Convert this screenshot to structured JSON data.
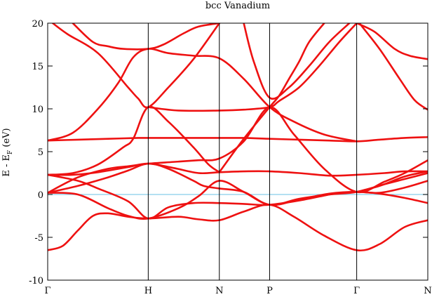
{
  "chart_data": {
    "type": "line",
    "title": "bcc Vanadium",
    "ylabel": {
      "main": "E - E",
      "subscript": "F",
      "suffix": " (eV)"
    },
    "xlabel": "",
    "ylim": [
      -10,
      20
    ],
    "yticks": [
      -10,
      -5,
      0,
      5,
      10,
      15,
      20
    ],
    "grid": false,
    "legend": "none",
    "colors": {
      "bands": "#ee1111",
      "fermi_level": "#87ceeb",
      "axes": "#000000"
    },
    "high_symmetry_points": [
      {
        "label": "Γ",
        "k": 0.0
      },
      {
        "label": "H",
        "k": 1.0
      },
      {
        "label": "N",
        "k": 1.7071
      },
      {
        "label": "P",
        "k": 2.2071
      },
      {
        "label": "Γ",
        "k": 3.0731
      },
      {
        "label": "N",
        "k": 3.7802
      }
    ],
    "fermi_level": 0,
    "series": [
      {
        "values": [
          [
            0.0,
            -6.5
          ],
          [
            0.15,
            -6.0
          ],
          [
            0.3,
            -4.2
          ],
          [
            0.45,
            -2.5
          ],
          [
            0.6,
            -2.2
          ],
          [
            0.8,
            -2.6
          ],
          [
            1.0,
            -2.8
          ],
          [
            1.3,
            -2.6
          ],
          [
            1.5,
            -2.9
          ],
          [
            1.7071,
            -3.0
          ],
          [
            1.95,
            -2.0
          ],
          [
            2.2071,
            -1.2
          ],
          [
            2.45,
            -2.6
          ],
          [
            2.75,
            -4.8
          ],
          [
            3.0731,
            -6.5
          ],
          [
            3.3,
            -5.8
          ],
          [
            3.55,
            -3.8
          ],
          [
            3.7802,
            -3.0
          ]
        ]
      },
      {
        "values": [
          [
            0.0,
            0.2
          ],
          [
            0.3,
            0.0
          ],
          [
            0.6,
            -1.6
          ],
          [
            0.8,
            -2.5
          ],
          [
            1.0,
            -2.8
          ],
          [
            1.3,
            -1.6
          ],
          [
            1.5,
            -0.2
          ],
          [
            1.7071,
            1.6
          ],
          [
            1.95,
            0.3
          ],
          [
            2.2071,
            -1.2
          ],
          [
            2.5,
            -0.6
          ],
          [
            2.8,
            0.1
          ],
          [
            3.0731,
            0.3
          ],
          [
            3.3,
            0.1
          ],
          [
            3.55,
            -0.4
          ],
          [
            3.7802,
            -1.0
          ]
        ]
      },
      {
        "values": [
          [
            0.0,
            2.3
          ],
          [
            0.3,
            1.6
          ],
          [
            0.5,
            0.7
          ],
          [
            0.8,
            -0.8
          ],
          [
            1.0,
            -2.8
          ],
          [
            1.2,
            -1.5
          ],
          [
            1.45,
            -1.0
          ],
          [
            1.7071,
            -1.0
          ],
          [
            1.95,
            -1.1
          ],
          [
            2.2071,
            -1.2
          ],
          [
            2.55,
            -0.6
          ],
          [
            2.85,
            0.1
          ],
          [
            3.0731,
            0.3
          ],
          [
            3.3,
            0.2
          ],
          [
            3.55,
            0.8
          ],
          [
            3.7802,
            1.6
          ]
        ]
      },
      {
        "values": [
          [
            0.0,
            0.2
          ],
          [
            0.3,
            1.0
          ],
          [
            0.6,
            2.0
          ],
          [
            0.8,
            2.8
          ],
          [
            1.0,
            3.6
          ],
          [
            1.2,
            3.0
          ],
          [
            1.45,
            1.6
          ],
          [
            1.55,
            1.0
          ],
          [
            1.7071,
            0.7
          ],
          [
            1.95,
            0.3
          ],
          [
            2.2071,
            -1.2
          ],
          [
            2.5,
            -0.5
          ],
          [
            2.8,
            0.0
          ],
          [
            3.0731,
            0.3
          ],
          [
            3.35,
            1.2
          ],
          [
            3.55,
            1.8
          ],
          [
            3.7802,
            2.5
          ]
        ]
      },
      {
        "values": [
          [
            0.0,
            2.3
          ],
          [
            0.25,
            2.3
          ],
          [
            0.5,
            2.6
          ],
          [
            0.8,
            3.2
          ],
          [
            1.0,
            3.6
          ],
          [
            1.25,
            3.1
          ],
          [
            1.5,
            2.5
          ],
          [
            1.7071,
            2.6
          ],
          [
            1.95,
            2.7
          ],
          [
            2.2071,
            2.7
          ],
          [
            2.5,
            2.5
          ],
          [
            2.8,
            2.2
          ],
          [
            3.0731,
            2.3
          ],
          [
            3.35,
            2.5
          ],
          [
            3.55,
            2.7
          ],
          [
            3.7802,
            2.7
          ]
        ]
      },
      {
        "values": [
          [
            0.0,
            0.2
          ],
          [
            0.3,
            2.0
          ],
          [
            0.6,
            3.0
          ],
          [
            0.8,
            3.3
          ],
          [
            1.0,
            3.6
          ],
          [
            1.25,
            3.8
          ],
          [
            1.5,
            4.0
          ],
          [
            1.7071,
            4.2
          ],
          [
            1.95,
            6.2
          ],
          [
            2.2071,
            10.2
          ],
          [
            2.45,
            7.0
          ],
          [
            2.75,
            3.0
          ],
          [
            3.0731,
            0.3
          ],
          [
            3.35,
            1.5
          ],
          [
            3.55,
            2.5
          ],
          [
            3.7802,
            4.0
          ]
        ]
      },
      {
        "values": [
          [
            0.0,
            2.3
          ],
          [
            0.25,
            2.5
          ],
          [
            0.5,
            3.5
          ],
          [
            0.75,
            5.5
          ],
          [
            0.85,
            6.5
          ],
          [
            1.0,
            10.2
          ],
          [
            1.2,
            8.5
          ],
          [
            1.45,
            5.5
          ],
          [
            1.6,
            3.5
          ],
          [
            1.7071,
            2.6
          ]
        ]
      },
      {
        "values": [
          [
            1.7071,
            2.6
          ],
          [
            1.95,
            6.5
          ],
          [
            2.2071,
            10.2
          ],
          [
            2.3,
            11.5
          ],
          [
            2.4,
            13.5
          ],
          [
            2.5,
            15.5
          ],
          [
            2.6,
            17.8
          ],
          [
            2.75,
            20.0
          ]
        ]
      },
      {
        "values": [
          [
            0.0,
            6.3
          ],
          [
            0.3,
            6.4
          ],
          [
            0.6,
            6.5
          ],
          [
            0.9,
            6.6
          ],
          [
            1.0,
            6.6
          ],
          [
            1.3,
            6.6
          ],
          [
            1.5,
            6.6
          ],
          [
            1.7071,
            6.6
          ],
          [
            1.95,
            6.6
          ],
          [
            2.2071,
            6.5
          ],
          [
            2.5,
            6.4
          ],
          [
            2.8,
            6.3
          ],
          [
            3.0731,
            6.2
          ],
          [
            3.3,
            6.4
          ],
          [
            3.55,
            6.6
          ],
          [
            3.7802,
            6.7
          ]
        ]
      },
      {
        "values": [
          [
            0.05,
            20.0
          ],
          [
            0.2,
            18.7
          ],
          [
            0.5,
            16.5
          ],
          [
            0.8,
            12.5
          ],
          [
            0.9,
            11.2
          ],
          [
            1.0,
            10.2
          ],
          [
            1.2,
            12.5
          ],
          [
            1.45,
            15.8
          ],
          [
            1.7071,
            20.0
          ]
        ]
      },
      {
        "values": [
          [
            0.25,
            20.0
          ],
          [
            0.45,
            17.8
          ],
          [
            0.6,
            17.3
          ],
          [
            0.75,
            17.0
          ],
          [
            1.0,
            17.0
          ],
          [
            1.15,
            17.5
          ],
          [
            1.35,
            18.8
          ],
          [
            1.5,
            19.6
          ],
          [
            1.7071,
            20.0
          ]
        ]
      },
      {
        "values": [
          [
            0.0,
            6.3
          ],
          [
            0.25,
            7.2
          ],
          [
            0.5,
            10.0
          ],
          [
            0.7,
            13.0
          ],
          [
            0.85,
            16.0
          ],
          [
            1.0,
            17.0
          ],
          [
            1.2,
            16.5
          ],
          [
            1.45,
            16.2
          ],
          [
            1.7071,
            15.9
          ],
          [
            1.95,
            13.5
          ],
          [
            2.2071,
            10.2
          ],
          [
            2.45,
            8.5
          ],
          [
            2.75,
            7.0
          ],
          [
            3.0731,
            6.2
          ]
        ]
      },
      {
        "values": [
          [
            1.0,
            10.2
          ],
          [
            1.3,
            9.8
          ],
          [
            1.7071,
            9.8
          ],
          [
            1.95,
            9.9
          ],
          [
            2.2071,
            10.2
          ],
          [
            2.3,
            10.9
          ],
          [
            2.5,
            12.5
          ],
          [
            2.7,
            15.0
          ],
          [
            2.9,
            17.8
          ],
          [
            3.0731,
            20.0
          ]
        ]
      },
      {
        "values": [
          [
            1.95,
            20.0
          ],
          [
            2.05,
            15.5
          ],
          [
            2.2071,
            11.3
          ],
          [
            2.4,
            12.5
          ],
          [
            2.6,
            15.0
          ],
          [
            2.8,
            17.8
          ],
          [
            3.0,
            20.0
          ]
        ]
      },
      {
        "values": [
          [
            3.0731,
            20.0
          ],
          [
            3.25,
            19.0
          ],
          [
            3.45,
            17.0
          ],
          [
            3.6,
            16.2
          ],
          [
            3.7802,
            15.8
          ]
        ]
      },
      {
        "values": [
          [
            3.1,
            20.0
          ],
          [
            3.3,
            17.0
          ],
          [
            3.5,
            13.5
          ],
          [
            3.65,
            11.0
          ],
          [
            3.7802,
            9.9
          ]
        ]
      },
      {
        "values": [
          [
            3.0731,
            0.3
          ],
          [
            3.3,
            1.0
          ],
          [
            3.55,
            2.1
          ],
          [
            3.7802,
            2.7
          ]
        ]
      }
    ]
  }
}
